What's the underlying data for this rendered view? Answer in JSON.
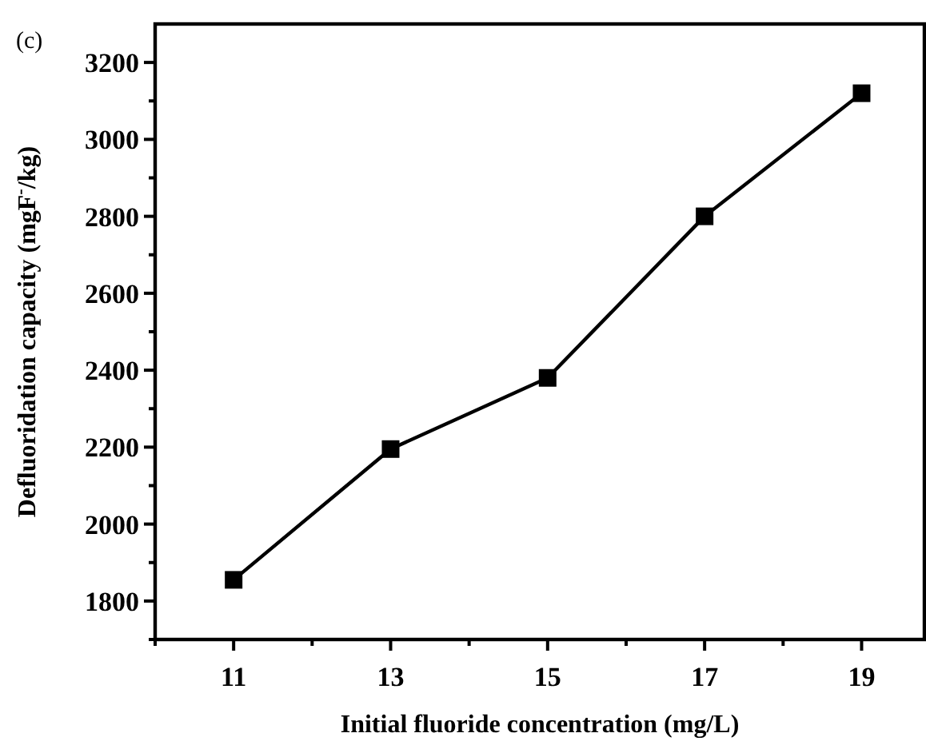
{
  "chart_data": {
    "type": "line",
    "annotations": [
      "(c)"
    ],
    "xlabel": "Initial fluoride concentration (mg/L)",
    "ylabel": "Defluoridation capacity (mgF$^{-}$/kg)",
    "x": [
      11,
      13,
      15,
      17,
      19
    ],
    "series": [
      {
        "color": "#000000",
        "values": [
          1855,
          2195,
          2380,
          2800,
          3120
        ]
      }
    ],
    "xlim": [
      10,
      19.8
    ],
    "xticks": [
      {
        "value": 10,
        "label": null
      },
      11,
      {
        "value": 12,
        "label": null
      },
      13,
      {
        "value": 14,
        "label": null
      },
      15,
      {
        "value": 16,
        "label": null
      },
      17,
      {
        "value": 18,
        "label": null
      },
      19
    ],
    "ylim": [
      1700,
      3300
    ],
    "yticks": [
      {
        "value": 1700,
        "label": null
      },
      1800,
      {
        "value": 1900,
        "label": null
      },
      2000,
      {
        "value": 2100,
        "label": null
      },
      2200,
      {
        "value": 2300,
        "label": null
      },
      2400,
      {
        "value": 2500,
        "label": null
      },
      2600,
      {
        "value": 2700,
        "label": null
      },
      2800,
      {
        "value": 2900,
        "label": null
      },
      3000,
      {
        "value": 3100,
        "label": null
      },
      3200
    ],
    "grid": false,
    "marker": "square",
    "line_style": "solid"
  }
}
